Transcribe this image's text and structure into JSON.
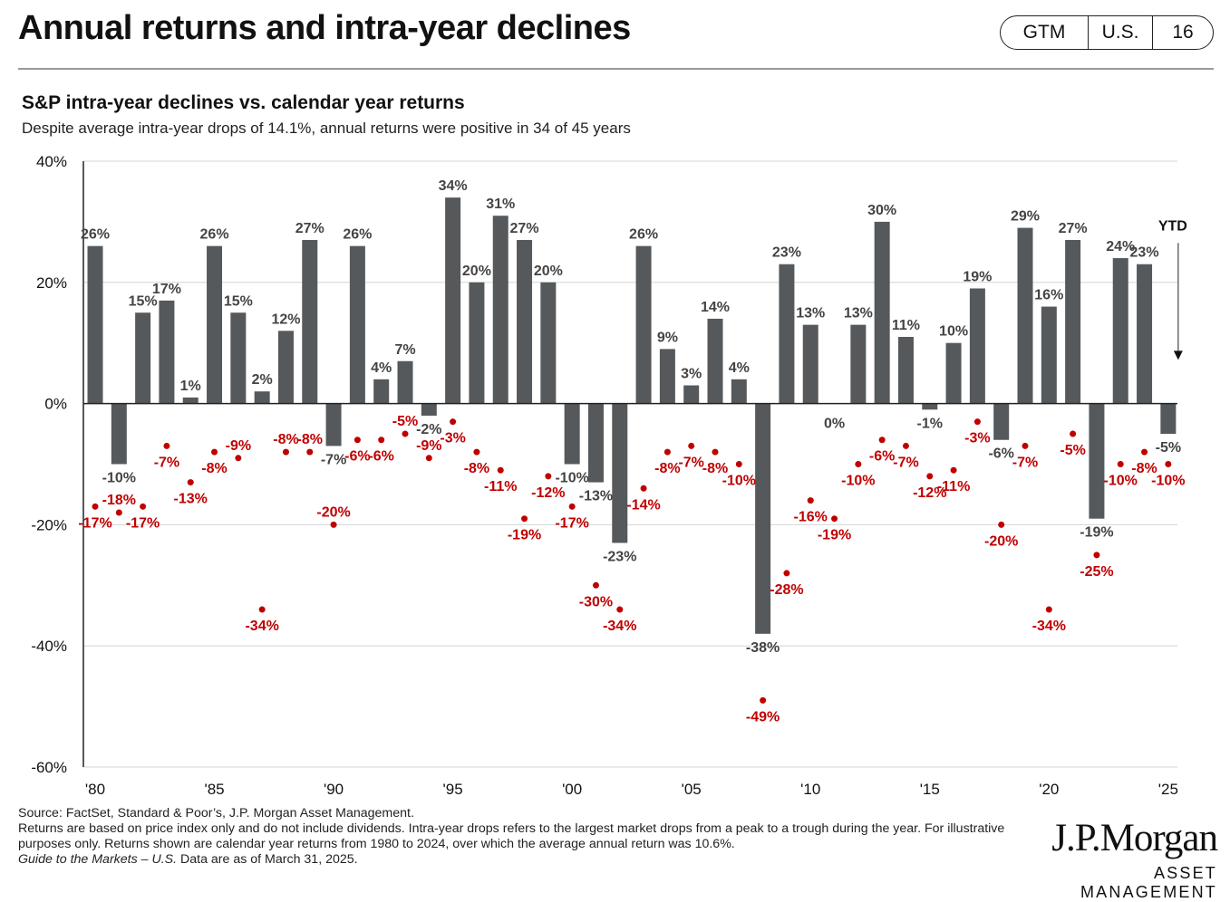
{
  "header": {
    "title": "Annual returns and intra-year declines",
    "badge": [
      "GTM",
      "U.S.",
      "16"
    ]
  },
  "chart_header": {
    "subtitle": "S&P intra-year declines vs. calendar year returns",
    "description": "Despite average intra-year drops of 14.1%, annual returns were positive in 34 of 45 years"
  },
  "chart_data": {
    "type": "bar",
    "title": "S&P intra-year declines vs. calendar year returns",
    "ylim": [
      -60,
      40
    ],
    "y_ticks": [
      "40%",
      "20%",
      "0%",
      "-20%",
      "-40%",
      "-60%"
    ],
    "x_tick_labels": [
      "'80",
      "'85",
      "'90",
      "'95",
      "'00",
      "'05",
      "'10",
      "'15",
      "'20",
      "'25"
    ],
    "grid": true,
    "colors": {
      "bar": "#55595c",
      "decline": "#c00000",
      "label": "#444444"
    },
    "years": [
      1980,
      1981,
      1982,
      1983,
      1984,
      1985,
      1986,
      1987,
      1988,
      1989,
      1990,
      1991,
      1992,
      1993,
      1994,
      1995,
      1996,
      1997,
      1998,
      1999,
      2000,
      2001,
      2002,
      2003,
      2004,
      2005,
      2006,
      2007,
      2008,
      2009,
      2010,
      2011,
      2012,
      2013,
      2014,
      2015,
      2016,
      2017,
      2018,
      2019,
      2020,
      2021,
      2022,
      2023,
      2024,
      2025
    ],
    "series": [
      {
        "name": "Calendar year returns",
        "values": [
          26,
          -10,
          15,
          17,
          1,
          26,
          15,
          2,
          12,
          27,
          -7,
          26,
          4,
          7,
          -2,
          34,
          20,
          31,
          27,
          20,
          -10,
          -13,
          -23,
          26,
          9,
          3,
          14,
          4,
          -38,
          23,
          13,
          0,
          13,
          30,
          11,
          -1,
          10,
          19,
          -6,
          29,
          16,
          27,
          -19,
          24,
          23,
          -5
        ],
        "labels": [
          "26%",
          "-10%",
          "15%",
          "17%",
          "1%",
          "26%",
          "15%",
          "2%",
          "12%",
          "27%",
          "-7%",
          "26%",
          "4%",
          "7%",
          "-2%",
          "34%",
          "20%",
          "31%",
          "27%",
          "20%",
          "-10%",
          "-13%",
          "-23%",
          "26%",
          "9%",
          "3%",
          "14%",
          "4%",
          "-38%",
          "23%",
          "13%",
          "0%",
          "13%",
          "30%",
          "11%",
          "-1%",
          "10%",
          "19%",
          "-6%",
          "29%",
          "16%",
          "27%",
          "-19%",
          "24%",
          "23%",
          "-5%"
        ]
      },
      {
        "name": "Intra-year declines",
        "values": [
          -17,
          -18,
          -17,
          -7,
          -13,
          -8,
          -9,
          -34,
          -8,
          -8,
          -20,
          -6,
          -6,
          -5,
          -9,
          -3,
          -8,
          -11,
          -19,
          -12,
          -17,
          -30,
          -34,
          -14,
          -8,
          -7,
          -8,
          -10,
          -49,
          -28,
          -16,
          -19,
          -10,
          -6,
          -7,
          -12,
          -11,
          -3,
          -20,
          -7,
          -34,
          -5,
          -25,
          -10,
          -8,
          -10
        ],
        "labels": [
          "-17%",
          "-18%",
          "-17%",
          "-7%",
          "-13%",
          "-8%",
          "-9%",
          "-34%",
          "-8%",
          "-8%",
          "-20%",
          "-6%",
          "-6%",
          "-5%",
          "-9%",
          "-3%",
          "-8%",
          "-11%",
          "-19%",
          "-12%",
          "-17%",
          "-30%",
          "-34%",
          "-14%",
          "-8%",
          "-7%",
          "-8%",
          "-10%",
          "-49%",
          "-28%",
          "-16%",
          "-19%",
          "-10%",
          "-6%",
          "-7%",
          "-12%",
          "-11%",
          "-3%",
          "-20%",
          "-7%",
          "-34%",
          "-5%",
          "-25%",
          "-10%",
          "-8%",
          "-10%"
        ]
      }
    ],
    "annotation": "YTD"
  },
  "footer": {
    "source": "Source: FactSet, Standard & Poor’s, J.P. Morgan Asset Management.",
    "note": "Returns are based on price index only and do not include dividends. Intra-year drops refers to the largest market drops from a peak to a trough during the year. For illustrative purposes only. Returns shown are calendar year returns from 1980 to 2024, over which the average annual return was 10.6%.",
    "guide_italic": "Guide to the Markets – U.S.",
    "guide_rest": " Data are as of March 31, 2025."
  },
  "logo": {
    "name": "J.P.Morgan",
    "sub": "ASSET MANAGEMENT"
  }
}
